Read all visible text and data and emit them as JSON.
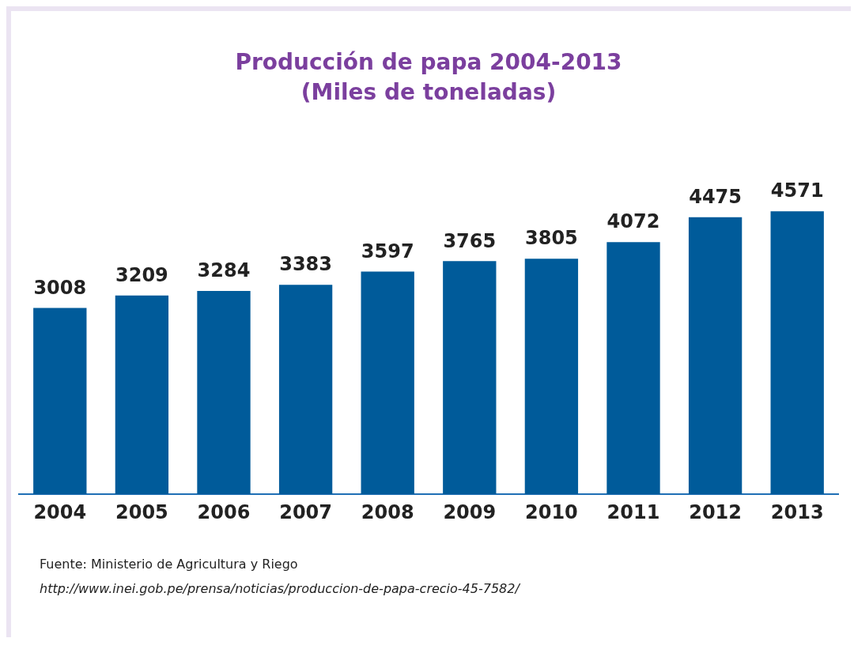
{
  "chart_data": {
    "type": "bar",
    "title": "Producción de papa 2004-2013",
    "subtitle": "(Miles de toneladas)",
    "categories": [
      "2004",
      "2005",
      "2006",
      "2007",
      "2008",
      "2009",
      "2010",
      "2011",
      "2012",
      "2013"
    ],
    "values": [
      3008,
      3209,
      3284,
      3383,
      3597,
      3765,
      3805,
      4072,
      4475,
      4571
    ],
    "color": "#005b9a",
    "tick_labels": "x",
    "grid": false,
    "legend": false,
    "data_labels": true,
    "annotations": [
      "Fuente: Ministerio de Agricultura y Riego",
      "http://www.inei.gob.pe/prensa/noticias/produccion-de-papa-crecio-45-7582/"
    ]
  }
}
